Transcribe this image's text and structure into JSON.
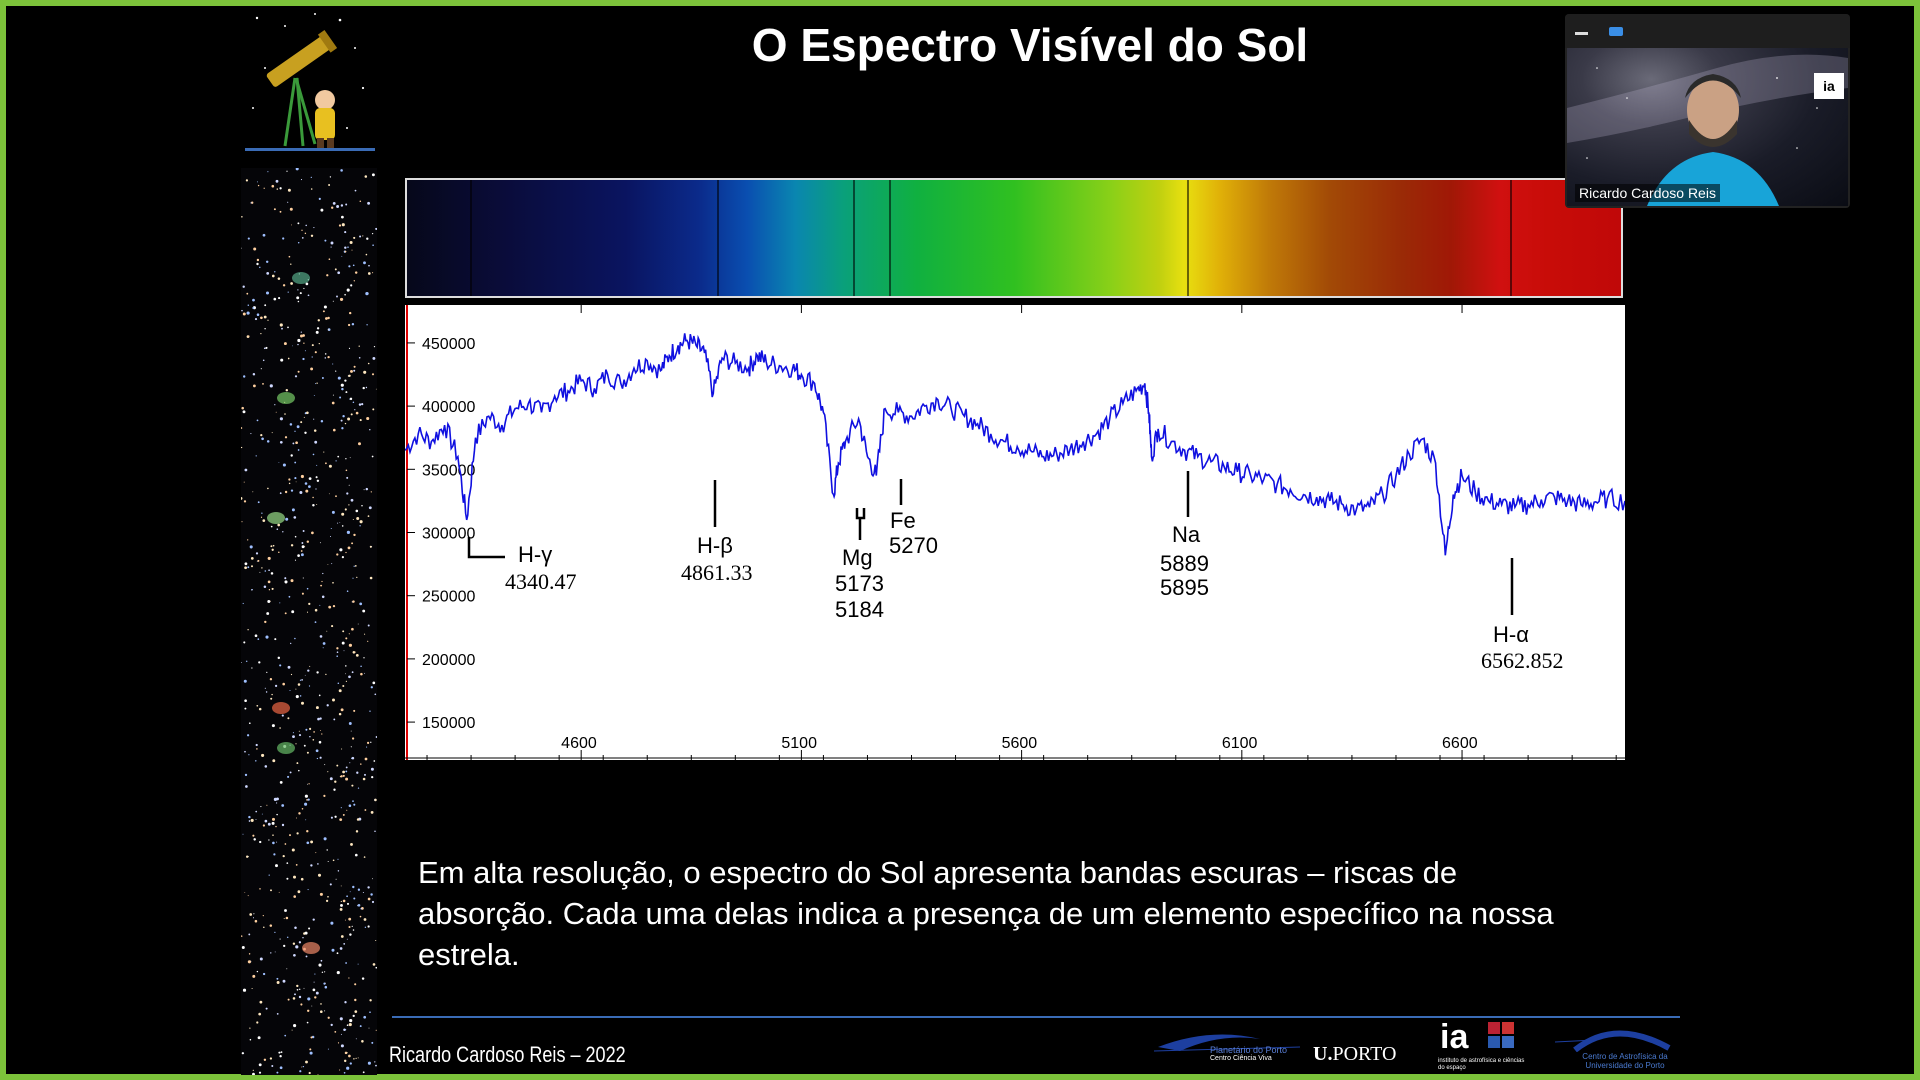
{
  "slide": {
    "title": "O Espectro Visível do Sol",
    "caption": "Em alta resolução, o espectro do Sol apresenta bandas escuras – riscas de absorção. Cada uma delas indica a presença de um elemento específico na nossa estrela.",
    "author": "Ricardo Cardoso Reis – 2022"
  },
  "webcam": {
    "participant_name": "Ricardo Cardoso Reis",
    "badge_text": "ia",
    "minimize_icon": "minimize-icon",
    "status_icon": "screen-share-icon"
  },
  "logos": {
    "planetario_line1": "Planetário do Porto",
    "planetario_line2": "Centro Ciência Viva",
    "uporto": "PORTO",
    "uporto_mark": "U.",
    "ia": "ia",
    "ia_sub": "instituto de astrofísica e ciências do espaço",
    "caup": "Centro de Astrofísica da Universidade do Porto"
  },
  "chart_data": {
    "type": "line",
    "title": "",
    "xlabel": "",
    "ylabel": "",
    "xlim": [
      4200,
      6970
    ],
    "ylim": [
      120000,
      480000
    ],
    "x_ticks": [
      4600,
      5100,
      5600,
      6100,
      6600
    ],
    "y_ticks": [
      450000,
      400000,
      350000,
      300000,
      250000,
      200000,
      150000
    ],
    "line_color": "#1010e0",
    "series": [
      {
        "x": [
          4200,
          4230,
          4260,
          4290,
          4320,
          4340,
          4360,
          4390,
          4420,
          4450,
          4480,
          4510,
          4540,
          4570,
          4600,
          4630,
          4660,
          4690,
          4720,
          4750,
          4780,
          4800,
          4820,
          4840,
          4861,
          4880,
          4900,
          4920,
          4950,
          4980,
          5000,
          5020,
          5050,
          5080,
          5100,
          5130,
          5150,
          5173,
          5184,
          5200,
          5230,
          5250,
          5270,
          5290,
          5320,
          5350,
          5380,
          5410,
          5440,
          5470,
          5500,
          5530,
          5560,
          5590,
          5620,
          5650,
          5680,
          5710,
          5740,
          5770,
          5800,
          5830,
          5860,
          5880,
          5889,
          5895,
          5910,
          5940,
          5970,
          6000,
          6030,
          6060,
          6090,
          6120,
          6150,
          6180,
          6210,
          6240,
          6270,
          6300,
          6330,
          6360,
          6390,
          6420,
          6450,
          6480,
          6510,
          6540,
          6562,
          6580,
          6600,
          6630,
          6660,
          6690,
          6720,
          6750,
          6780,
          6810,
          6840,
          6870,
          6900,
          6930,
          6970
        ],
        "y": [
          365000,
          378000,
          372000,
          385000,
          360000,
          310000,
          375000,
          392000,
          385000,
          398000,
          402000,
          395000,
          408000,
          412000,
          420000,
          414000,
          425000,
          418000,
          430000,
          436000,
          428000,
          440000,
          448000,
          452000,
          448000,
          442000,
          410000,
          438000,
          434000,
          430000,
          440000,
          435000,
          432000,
          430000,
          425000,
          418000,
          395000,
          330000,
          355000,
          372000,
          390000,
          360000,
          345000,
          398000,
          395000,
          392000,
          400000,
          405000,
          398000,
          392000,
          386000,
          378000,
          372000,
          368000,
          365000,
          360000,
          362000,
          366000,
          372000,
          378000,
          390000,
          402000,
          412000,
          418000,
          395000,
          360000,
          382000,
          372000,
          365000,
          360000,
          356000,
          352000,
          348000,
          345000,
          342000,
          338000,
          334000,
          330000,
          328000,
          325000,
          322000,
          318000,
          320000,
          330000,
          345000,
          362000,
          374000,
          355000,
          282000,
          330000,
          345000,
          332000,
          325000,
          322000,
          320000,
          322000,
          326000,
          328000,
          325000,
          322000,
          324000,
          327000,
          325000
        ],
        "name": ""
      }
    ],
    "annotations": [
      {
        "label": "H-γ",
        "wavelength": "4340.47"
      },
      {
        "label": "H-β",
        "wavelength": "4861.33"
      },
      {
        "label": "Mg",
        "wavelength": "5173",
        "wavelength2": "5184"
      },
      {
        "label": "Fe",
        "wavelength": "5270"
      },
      {
        "label": "Na",
        "wavelength": "5889",
        "wavelength2": "5895"
      },
      {
        "label": "H-α",
        "wavelength": "6562.852"
      }
    ]
  }
}
